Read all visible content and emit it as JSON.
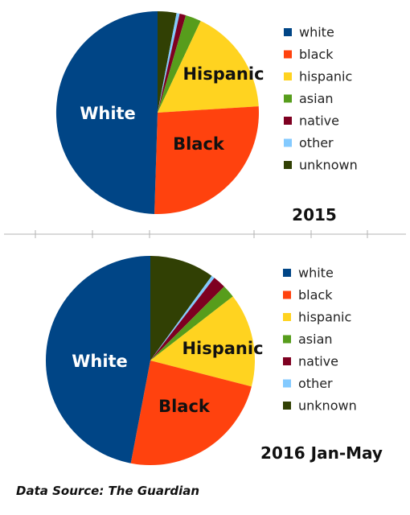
{
  "source": "Data Source: The Guardian",
  "chart_data": [
    {
      "type": "pie",
      "title": "2015",
      "categories": [
        "white",
        "black",
        "hispanic",
        "asian",
        "native",
        "other",
        "unknown"
      ],
      "values": [
        49.5,
        26.5,
        17.0,
        2.5,
        1.0,
        0.5,
        3.0
      ],
      "colors": [
        "#004586",
        "#ff420e",
        "#ffd320",
        "#579d1c",
        "#7e0021",
        "#83caff",
        "#314004"
      ],
      "slice_labels": [
        {
          "category": "white",
          "text": "White",
          "color": "#ffffff"
        },
        {
          "category": "black",
          "text": "Black",
          "color": "#111111"
        },
        {
          "category": "hispanic",
          "text": "Hispanic",
          "color": "#111111"
        }
      ]
    },
    {
      "type": "pie",
      "title": "2016 Jan-May",
      "categories": [
        "white",
        "black",
        "hispanic",
        "asian",
        "native",
        "other",
        "unknown"
      ],
      "values": [
        47.0,
        24.0,
        14.5,
        2.0,
        2.0,
        0.5,
        10.0
      ],
      "colors": [
        "#004586",
        "#ff420e",
        "#ffd320",
        "#579d1c",
        "#7e0021",
        "#83caff",
        "#314004"
      ],
      "slice_labels": [
        {
          "category": "white",
          "text": "White",
          "color": "#ffffff"
        },
        {
          "category": "black",
          "text": "Black",
          "color": "#111111"
        },
        {
          "category": "hispanic",
          "text": "Hispanic",
          "color": "#111111"
        }
      ]
    }
  ]
}
